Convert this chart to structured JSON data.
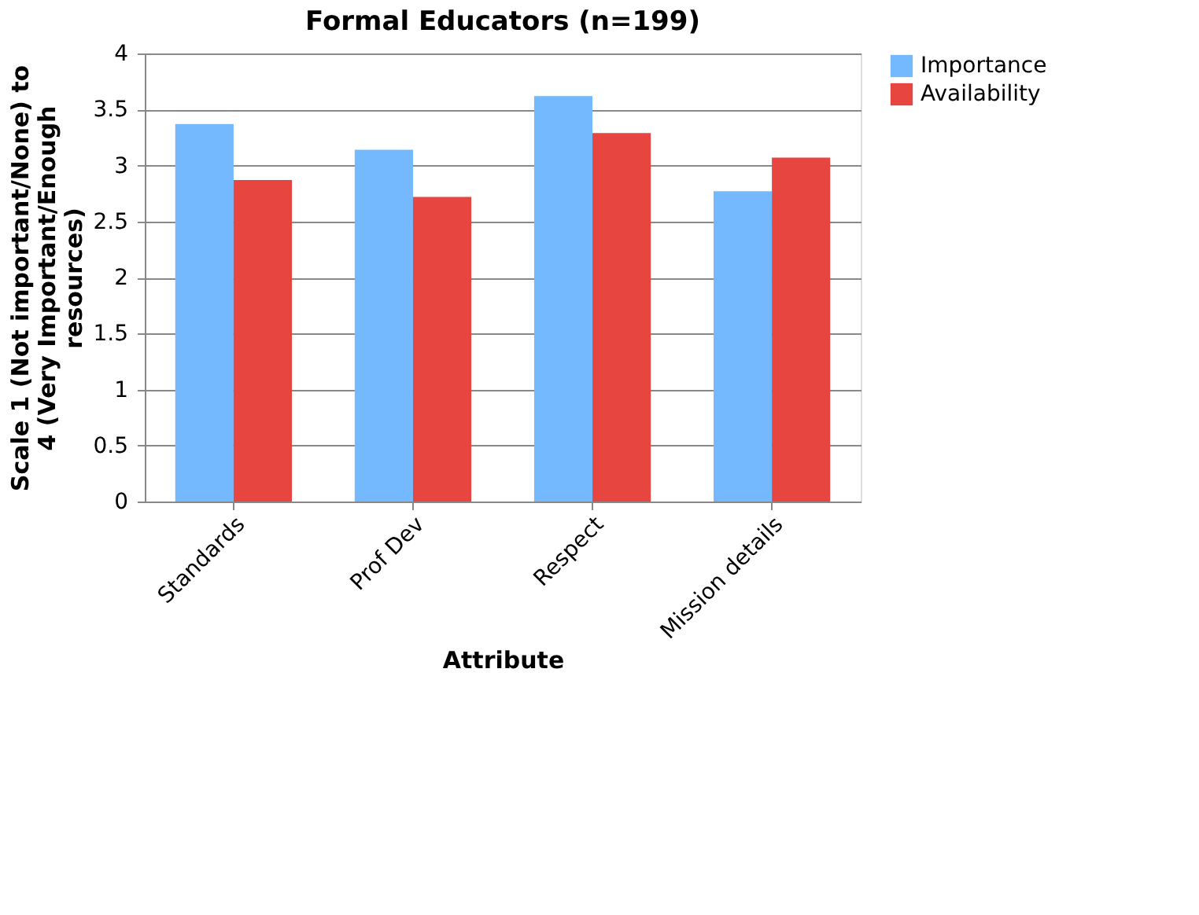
{
  "chart_data": {
    "type": "bar",
    "title": "Formal Educators (n=199)",
    "xlabel": "Attribute",
    "ylabel": "Scale 1 (Not important/None) to 4 (Very Important/Enough resources)",
    "categories": [
      "Standards",
      "Prof Dev",
      "Respect",
      "Mission details"
    ],
    "series": [
      {
        "name": "Importance",
        "color": "#74b8fd",
        "values": [
          3.37,
          3.14,
          3.62,
          2.77
        ]
      },
      {
        "name": "Availability",
        "color": "#e64540",
        "values": [
          2.87,
          2.72,
          3.29,
          3.07
        ]
      }
    ],
    "ylim": [
      0,
      4
    ],
    "yticks": [
      0,
      0.5,
      1,
      1.5,
      2,
      2.5,
      3,
      3.5,
      4
    ],
    "grid": "y",
    "legend": "right"
  }
}
